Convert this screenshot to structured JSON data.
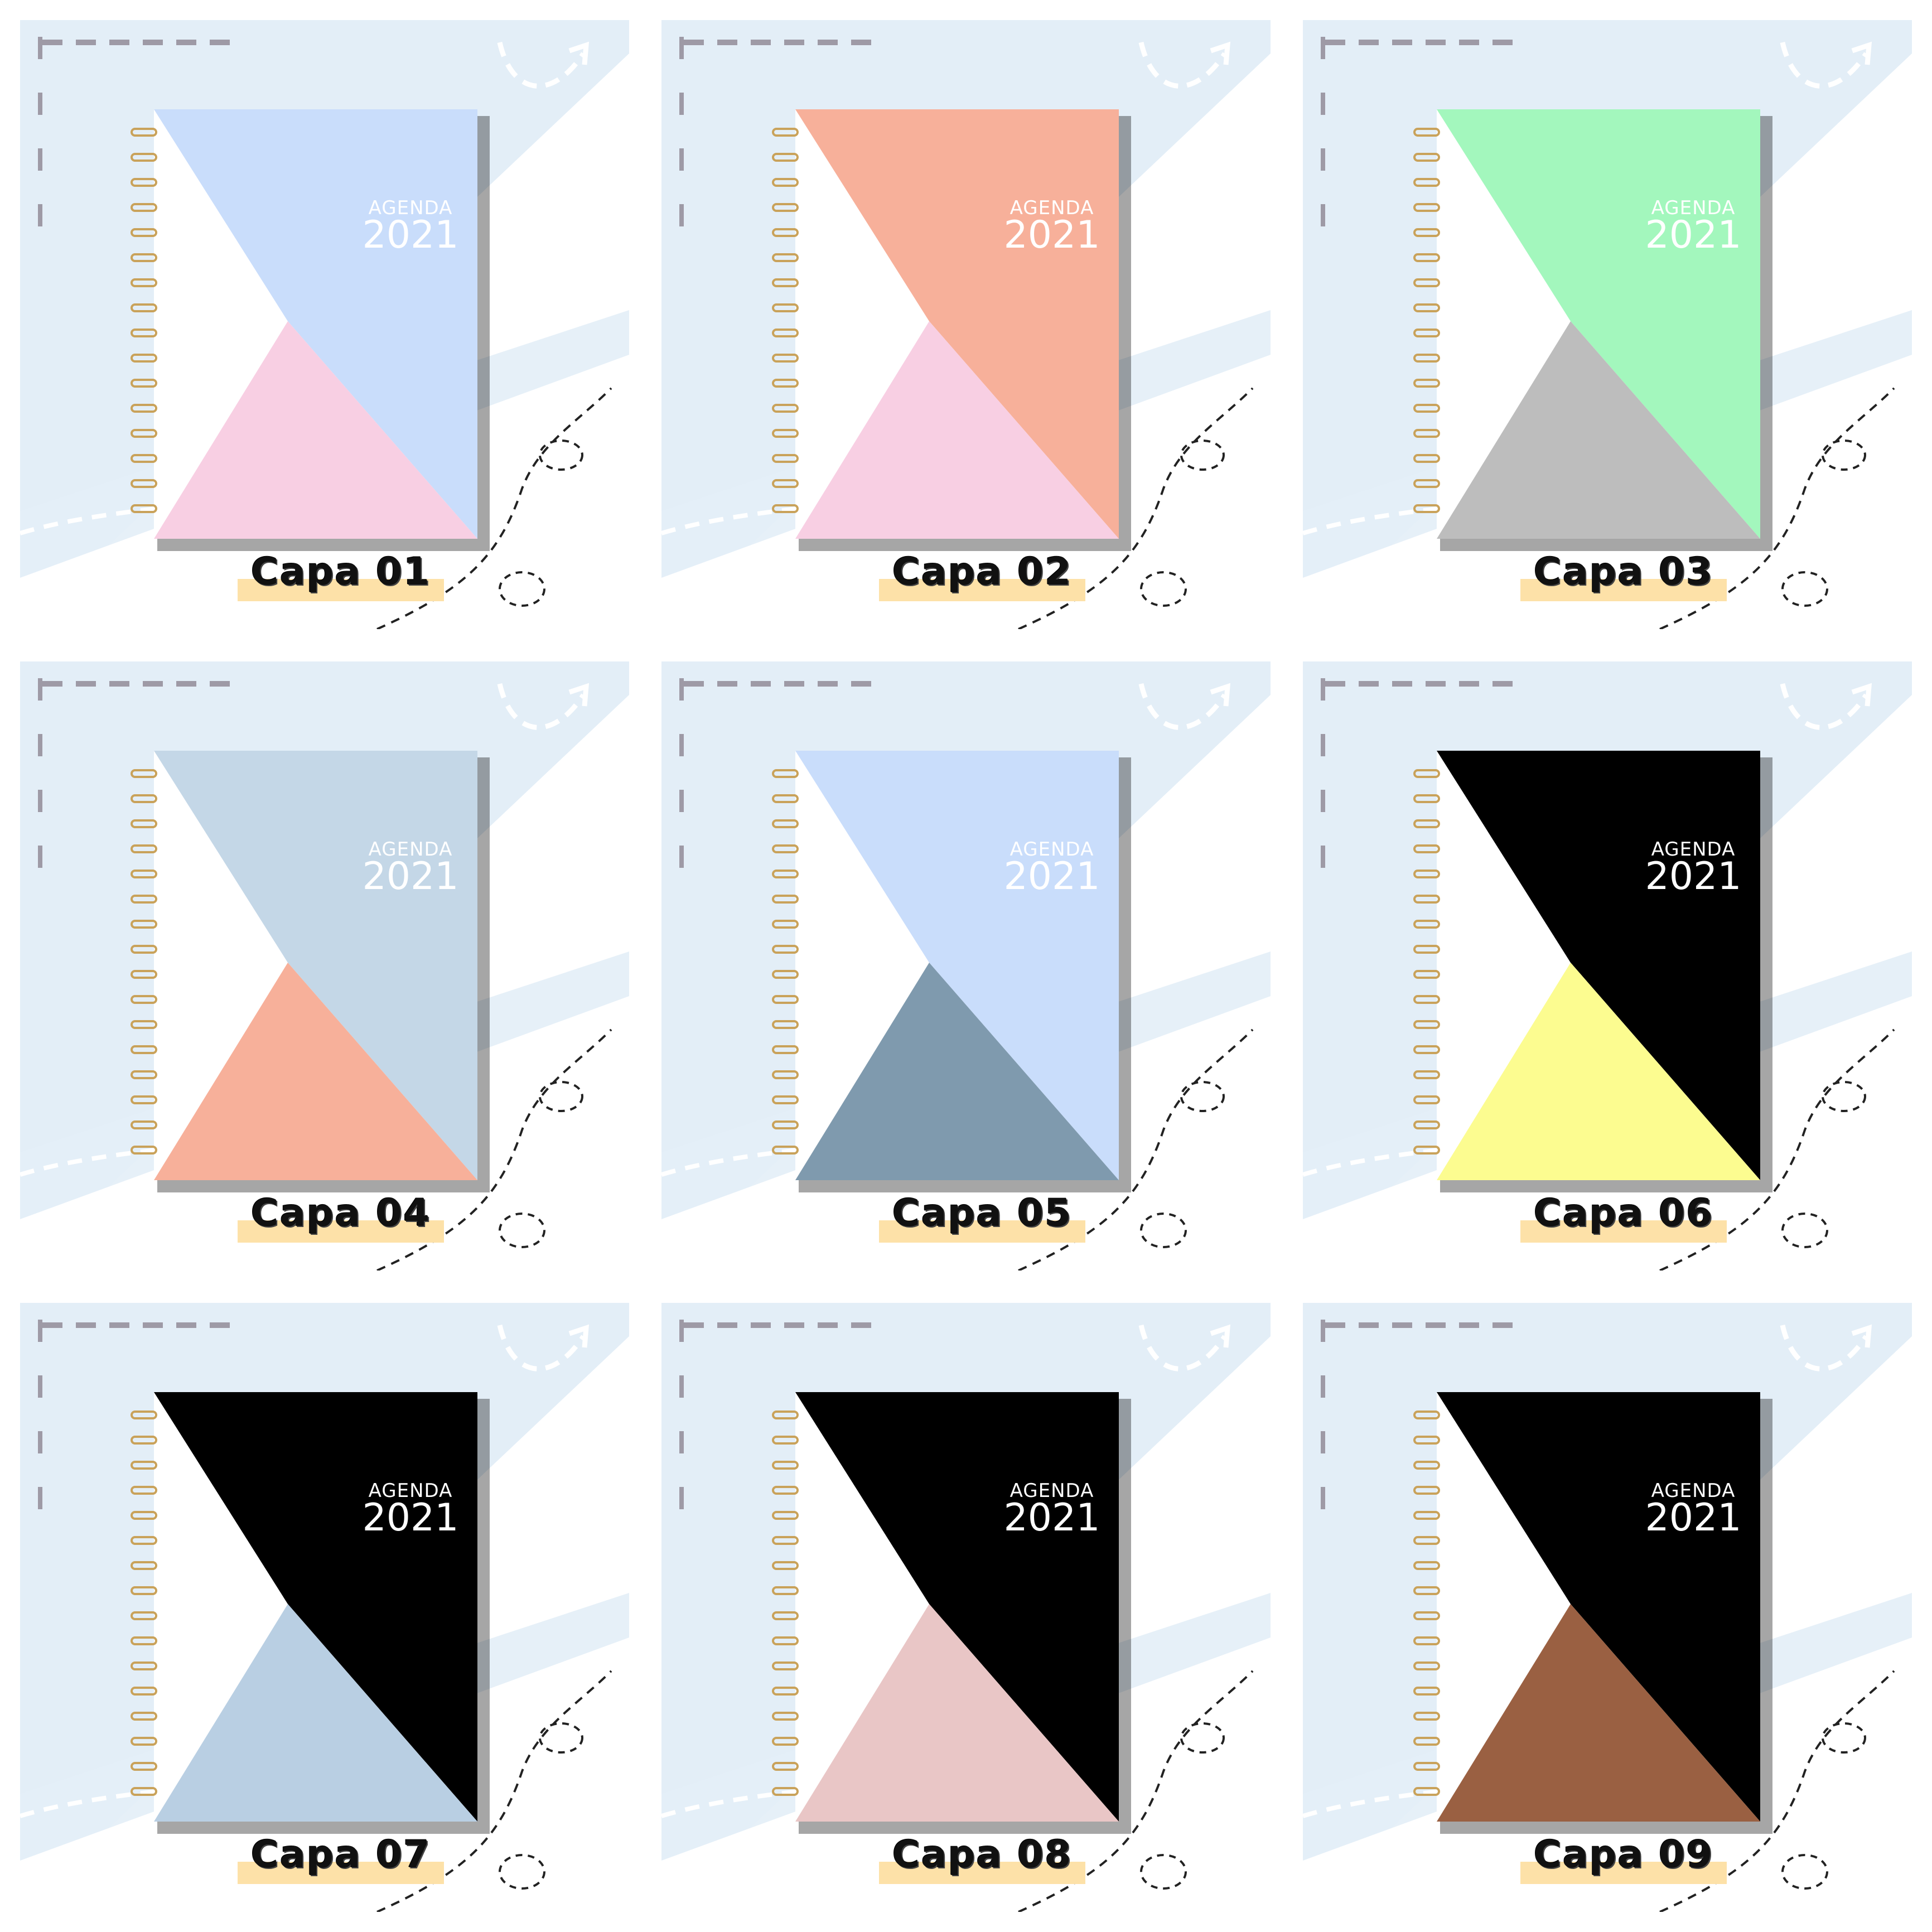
{
  "covers": [
    {
      "label": "Capa 01",
      "agenda": "AGENDA",
      "year": "2021",
      "top_color": "#c9ddfb",
      "bottom_color": "#f8cfe3"
    },
    {
      "label": "Capa 02",
      "agenda": "AGENDA",
      "year": "2021",
      "top_color": "#f7b09a",
      "bottom_color": "#f8cfe3"
    },
    {
      "label": "Capa 03",
      "agenda": "AGENDA",
      "year": "2021",
      "top_color": "#a3f7bd",
      "bottom_color": "#bdbdbd"
    },
    {
      "label": "Capa 04",
      "agenda": "AGENDA",
      "year": "2021",
      "top_color": "#c4d7e7",
      "bottom_color": "#f7b09a"
    },
    {
      "label": "Capa 05",
      "agenda": "AGENDA",
      "year": "2021",
      "top_color": "#c9ddfb",
      "bottom_color": "#7f9aae"
    },
    {
      "label": "Capa 06",
      "agenda": "AGENDA",
      "year": "2021",
      "top_color": "#000000",
      "bottom_color": "#fcfc90"
    },
    {
      "label": "Capa 07",
      "agenda": "AGENDA",
      "year": "2021",
      "top_color": "#000000",
      "bottom_color": "#b9cfe3"
    },
    {
      "label": "Capa 08",
      "agenda": "AGENDA",
      "year": "2021",
      "top_color": "#000000",
      "bottom_color": "#e9c6c6"
    },
    {
      "label": "Capa 09",
      "agenda": "AGENDA",
      "year": "2021",
      "top_color": "#000000",
      "bottom_color": "#9a6042"
    }
  ],
  "colors": {
    "background_panel": "#e3eef7",
    "tape": "#fde1a8",
    "spiral": "#c9a25a",
    "dashes": "#9e9aa6"
  }
}
